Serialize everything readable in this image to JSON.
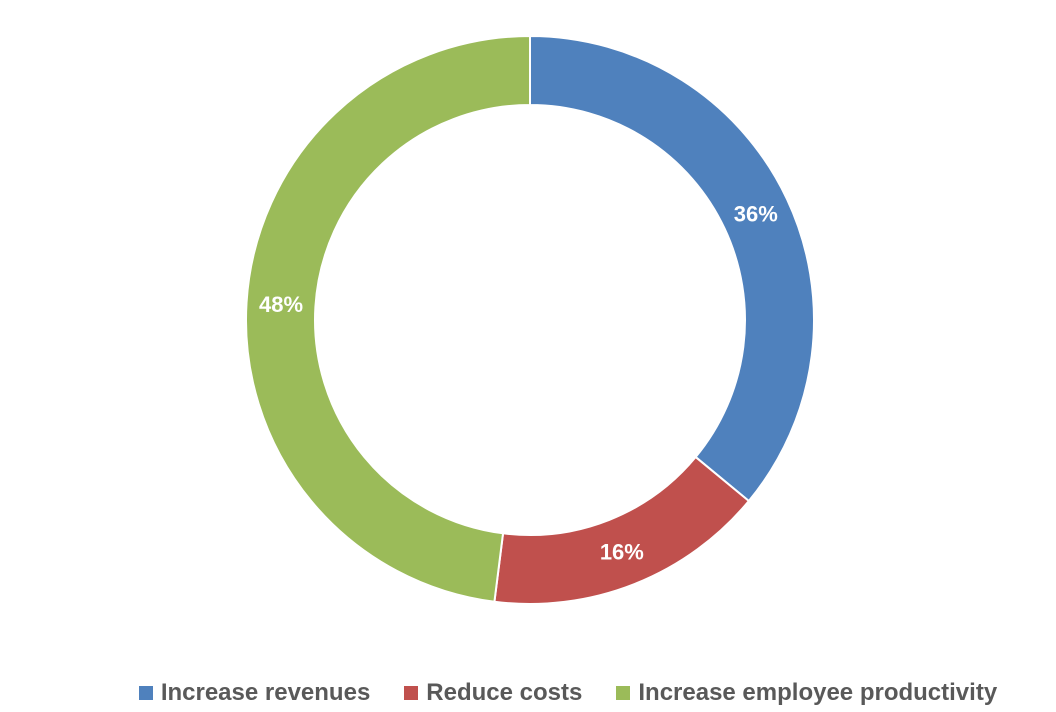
{
  "chart_data": {
    "type": "pie",
    "variant": "doughnut",
    "categories": [
      "Increase revenues",
      "Reduce costs",
      "Increase employee productivity"
    ],
    "values": [
      36,
      16,
      48
    ],
    "data_labels": [
      "36%",
      "16%",
      "48%"
    ],
    "colors": [
      "#4F81BD",
      "#C0504D",
      "#9BBB59"
    ],
    "legend": "bottom",
    "title": ""
  }
}
